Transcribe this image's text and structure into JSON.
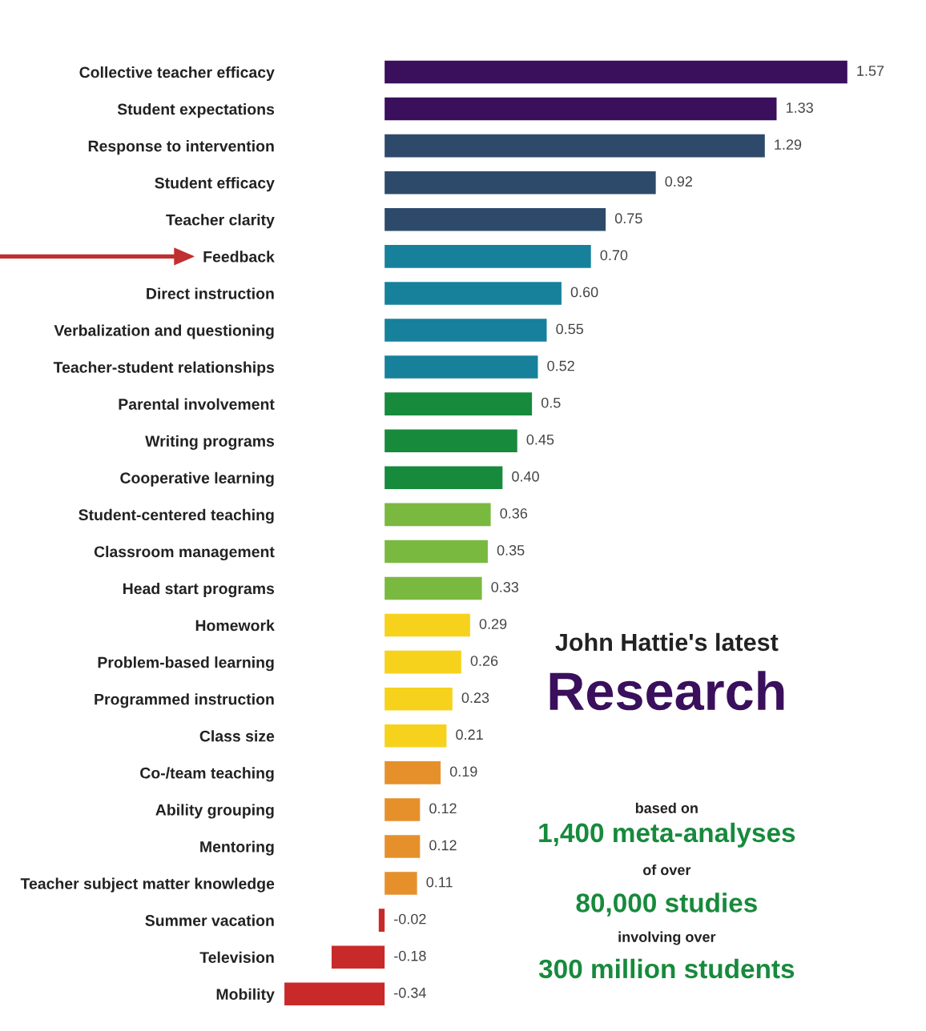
{
  "chart_data": {
    "type": "bar",
    "orientation": "horizontal",
    "tick_labels": "y",
    "grid": false,
    "categories": [
      "Collective teacher efficacy",
      "Student expectations",
      "Response to intervention",
      "Student efficacy",
      "Teacher clarity",
      "Feedback",
      "Direct instruction",
      "Verbalization and questioning",
      "Teacher-student relationships",
      "Parental involvement",
      "Writing programs",
      "Cooperative learning",
      "Student-centered teaching",
      "Classroom management",
      "Head start programs",
      "Homework",
      "Problem-based learning",
      "Programmed instruction",
      "Class size",
      "Co-/team teaching",
      "Ability grouping",
      "Mentoring",
      "Teacher subject matter knowledge",
      "Summer vacation",
      "Television",
      "Mobility"
    ],
    "values": [
      1.57,
      1.33,
      1.29,
      0.92,
      0.75,
      0.7,
      0.6,
      0.55,
      0.52,
      0.5,
      0.45,
      0.4,
      0.36,
      0.35,
      0.33,
      0.29,
      0.26,
      0.23,
      0.21,
      0.19,
      0.12,
      0.12,
      0.11,
      -0.02,
      -0.18,
      -0.34
    ],
    "value_labels": [
      "1.57",
      "1.33",
      "1.29",
      "0.92",
      "0.75",
      "0.70",
      "0.60",
      "0.55",
      "0.52",
      "0.5",
      "0.45",
      "0.40",
      "0.36",
      "0.35",
      "0.33",
      "0.29",
      "0.26",
      "0.23",
      "0.21",
      "0.19",
      "0.12",
      "0.12",
      "0.11",
      "-0.02",
      "-0.18",
      "-0.34"
    ],
    "colors": [
      "#3a0f5c",
      "#3a0f5c",
      "#2d4a6b",
      "#2d4a6b",
      "#2d4a6b",
      "#17819b",
      "#17819b",
      "#17819b",
      "#17819b",
      "#178a3c",
      "#178a3c",
      "#178a3c",
      "#7ab940",
      "#7ab940",
      "#7ab940",
      "#f6d21c",
      "#f6d21c",
      "#f6d21c",
      "#f6d21c",
      "#e6902c",
      "#e6902c",
      "#e6902c",
      "#e6902c",
      "#c82a2a",
      "#c82a2a",
      "#c82a2a"
    ],
    "annotations": [
      "John Hattie's latest",
      "Research",
      "based on",
      "1,400 meta-analyses",
      "of over",
      "80,000 studies",
      "involving over",
      "300 million students"
    ]
  }
}
